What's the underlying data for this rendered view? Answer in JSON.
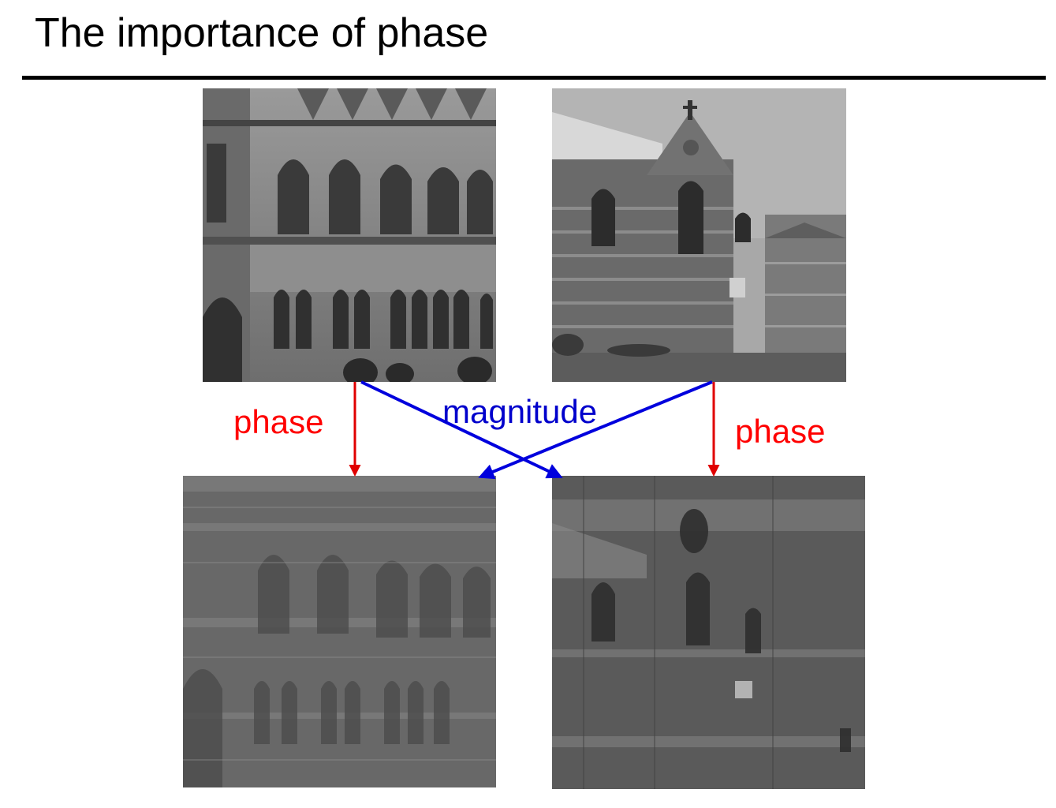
{
  "slide": {
    "title": "The importance of phase"
  },
  "labels": {
    "phase_left": "phase",
    "phase_right": "phase",
    "magnitude": "magnitude"
  },
  "images": {
    "top_left": "grayscale photo of gothic building facade with arched windows",
    "top_right": "grayscale photo of brick gothic college building with tower",
    "bottom_left": "reconstruction with phase of top-left image and magnitude of top-right image",
    "bottom_right": "reconstruction with phase of top-right image and magnitude of top-left image"
  },
  "colors": {
    "phase_arrow": "#e00000",
    "magnitude_arrow": "#0000dd",
    "phase_label": "#ff0000",
    "magnitude_label": "#0000cc"
  }
}
